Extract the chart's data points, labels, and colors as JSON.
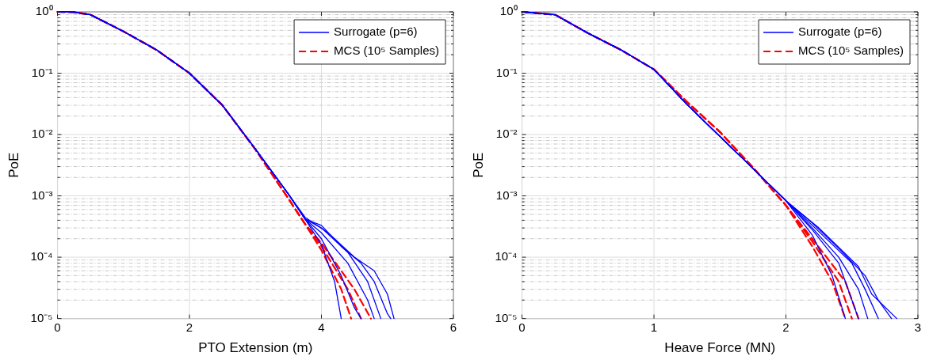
{
  "chart_data": [
    {
      "type": "line",
      "xlabel": "PTO Extension (m)",
      "ylabel": "PoE",
      "log": "y",
      "grid": true,
      "legend": "top right",
      "xlim": [
        0,
        6
      ],
      "xticks": [
        0,
        2,
        4,
        6
      ],
      "ylim": [
        1e-05,
        1
      ],
      "yticks": [
        {
          "value": 1e-05,
          "label": "10⁻⁵"
        },
        {
          "value": 2e-05,
          "label": null
        },
        {
          "value": 3e-05,
          "label": null
        },
        {
          "value": 4e-05,
          "label": null
        },
        {
          "value": 5e-05,
          "label": null
        },
        {
          "value": 6e-05,
          "label": null
        },
        {
          "value": 7e-05,
          "label": null
        },
        {
          "value": 8e-05,
          "label": null
        },
        {
          "value": 9e-05,
          "label": null
        },
        {
          "value": 0.0001,
          "label": "10⁻⁴"
        },
        {
          "value": 0.0002,
          "label": null
        },
        {
          "value": 0.0003,
          "label": null
        },
        {
          "value": 0.0004,
          "label": null
        },
        {
          "value": 0.0005,
          "label": null
        },
        {
          "value": 0.0006,
          "label": null
        },
        {
          "value": 0.0007,
          "label": null
        },
        {
          "value": 0.0008,
          "label": null
        },
        {
          "value": 0.0009,
          "label": null
        },
        {
          "value": 0.001,
          "label": "10⁻³"
        },
        {
          "value": 0.002,
          "label": null
        },
        {
          "value": 0.003,
          "label": null
        },
        {
          "value": 0.004,
          "label": null
        },
        {
          "value": 0.005,
          "label": null
        },
        {
          "value": 0.006,
          "label": null
        },
        {
          "value": 0.007,
          "label": null
        },
        {
          "value": 0.008,
          "label": null
        },
        {
          "value": 0.009,
          "label": null
        },
        {
          "value": 0.01,
          "label": "10⁻²"
        },
        {
          "value": 0.02,
          "label": null
        },
        {
          "value": 0.03,
          "label": null
        },
        {
          "value": 0.04,
          "label": null
        },
        {
          "value": 0.05,
          "label": null
        },
        {
          "value": 0.06,
          "label": null
        },
        {
          "value": 0.07,
          "label": null
        },
        {
          "value": 0.08,
          "label": null
        },
        {
          "value": 0.09,
          "label": null
        },
        {
          "value": 0.1,
          "label": "10⁻¹"
        },
        {
          "value": 0.2,
          "label": null
        },
        {
          "value": 0.3,
          "label": null
        },
        {
          "value": 0.4,
          "label": null
        },
        {
          "value": 0.5,
          "label": null
        },
        {
          "value": 0.6,
          "label": null
        },
        {
          "value": 0.7,
          "label": null
        },
        {
          "value": 0.8,
          "label": null
        },
        {
          "value": 0.9,
          "label": null
        },
        {
          "value": 1,
          "label": "10⁰"
        }
      ],
      "series": [
        {
          "name": "Surrogate (p=6)",
          "color": "#0000ff",
          "line_style": "solid",
          "x": [
            0,
            0.25,
            0.5,
            1,
            1.5,
            2,
            2.5,
            3,
            3.5,
            3.75,
            4.0,
            4.2,
            4.3
          ],
          "values": [
            1,
            0.99,
            0.9,
            0.48,
            0.24,
            0.1,
            0.03,
            0.0058,
            0.00107,
            0.00042,
            0.00016,
            4e-05,
            1e-05
          ]
        },
        {
          "color": "#0000ff",
          "line_style": "solid",
          "x": [
            0,
            0.25,
            0.5,
            1,
            1.5,
            2,
            2.5,
            3,
            3.5,
            3.75,
            4.0,
            4.3,
            4.5,
            4.6
          ],
          "values": [
            1,
            0.99,
            0.9,
            0.48,
            0.24,
            0.1,
            0.03,
            0.0058,
            0.00107,
            0.00042,
            0.0002,
            5e-05,
            1.5e-05,
            1e-05
          ]
        },
        {
          "color": "#0000ff",
          "line_style": "solid",
          "x": [
            0,
            0.25,
            0.5,
            1,
            1.5,
            2,
            2.5,
            3,
            3.5,
            3.75,
            4.0,
            4.4,
            4.7,
            4.8
          ],
          "values": [
            1,
            0.99,
            0.9,
            0.48,
            0.24,
            0.1,
            0.03,
            0.0058,
            0.00107,
            0.00042,
            0.00025,
            8e-05,
            2e-05,
            1e-05
          ]
        },
        {
          "color": "#0000ff",
          "line_style": "solid",
          "x": [
            0,
            0.25,
            0.5,
            1,
            1.5,
            2,
            2.5,
            3,
            3.5,
            3.75,
            4.0,
            4.4,
            4.7,
            4.9
          ],
          "values": [
            1,
            0.99,
            0.9,
            0.48,
            0.24,
            0.1,
            0.03,
            0.0058,
            0.00107,
            0.00042,
            0.0003,
            0.00012,
            4e-05,
            1e-05
          ]
        },
        {
          "color": "#0000ff",
          "line_style": "solid",
          "x": [
            0,
            0.25,
            0.5,
            1,
            1.5,
            2,
            2.5,
            3,
            3.5,
            3.75,
            4.0,
            4.3,
            4.6,
            4.8,
            5.0,
            5.05
          ],
          "values": [
            1,
            0.99,
            0.9,
            0.48,
            0.24,
            0.1,
            0.03,
            0.0058,
            0.00107,
            0.00042,
            0.00033,
            0.00015,
            8e-05,
            4e-05,
            1.2e-05,
            1e-05
          ]
        },
        {
          "color": "#0000ff",
          "line_style": "solid",
          "x": [
            0,
            0.25,
            0.5,
            1,
            1.5,
            2,
            2.5,
            3,
            3.5,
            3.75,
            4.1,
            4.5,
            4.8,
            5.0,
            5.1
          ],
          "values": [
            1,
            0.99,
            0.9,
            0.48,
            0.24,
            0.1,
            0.03,
            0.0058,
            0.00107,
            0.00045,
            0.00025,
            0.0001,
            6e-05,
            2.5e-05,
            1e-05
          ]
        },
        {
          "name": "MCS (10⁵ Samples)",
          "color": "#ff0000",
          "line_style": "dashed",
          "x": [
            0,
            0.25,
            0.5,
            1,
            1.5,
            2,
            2.5,
            3,
            3.5,
            3.75,
            4.0,
            4.3,
            4.45
          ],
          "values": [
            1,
            0.99,
            0.9,
            0.48,
            0.24,
            0.1,
            0.03,
            0.0057,
            0.0009,
            0.00035,
            0.00013,
            3e-05,
            1e-05
          ]
        },
        {
          "color": "#ff0000",
          "line_style": "dashed",
          "x": [
            0,
            0.25,
            0.5,
            1,
            1.5,
            2,
            2.5,
            3,
            3.5,
            3.75,
            4.0,
            4.4,
            4.6
          ],
          "values": [
            1,
            0.99,
            0.9,
            0.48,
            0.24,
            0.1,
            0.03,
            0.0057,
            0.0009,
            0.00035,
            0.00015,
            3e-05,
            1e-05
          ]
        },
        {
          "color": "#ff0000",
          "line_style": "dashed",
          "x": [
            0,
            0.25,
            0.5,
            1,
            1.5,
            2,
            2.5,
            3,
            3.5,
            3.75,
            4.0,
            4.5,
            4.75
          ],
          "values": [
            1,
            0.99,
            0.9,
            0.48,
            0.24,
            0.1,
            0.03,
            0.0057,
            0.0009,
            0.00035,
            0.00017,
            3e-05,
            1e-05
          ]
        }
      ]
    },
    {
      "type": "line",
      "xlabel": "Heave Force (MN)",
      "ylabel": "PoE",
      "log": "y",
      "grid": true,
      "legend": "top right",
      "xlim": [
        0,
        3
      ],
      "xticks": [
        0,
        1,
        2,
        3
      ],
      "ylim": [
        1e-05,
        1
      ],
      "yticks": [
        {
          "value": 1e-05,
          "label": "10⁻⁵"
        },
        {
          "value": 2e-05,
          "label": null
        },
        {
          "value": 3e-05,
          "label": null
        },
        {
          "value": 4e-05,
          "label": null
        },
        {
          "value": 5e-05,
          "label": null
        },
        {
          "value": 6e-05,
          "label": null
        },
        {
          "value": 7e-05,
          "label": null
        },
        {
          "value": 8e-05,
          "label": null
        },
        {
          "value": 9e-05,
          "label": null
        },
        {
          "value": 0.0001,
          "label": "10⁻⁴"
        },
        {
          "value": 0.0002,
          "label": null
        },
        {
          "value": 0.0003,
          "label": null
        },
        {
          "value": 0.0004,
          "label": null
        },
        {
          "value": 0.0005,
          "label": null
        },
        {
          "value": 0.0006,
          "label": null
        },
        {
          "value": 0.0007,
          "label": null
        },
        {
          "value": 0.0008,
          "label": null
        },
        {
          "value": 0.0009,
          "label": null
        },
        {
          "value": 0.001,
          "label": "10⁻³"
        },
        {
          "value": 0.002,
          "label": null
        },
        {
          "value": 0.003,
          "label": null
        },
        {
          "value": 0.004,
          "label": null
        },
        {
          "value": 0.005,
          "label": null
        },
        {
          "value": 0.006,
          "label": null
        },
        {
          "value": 0.007,
          "label": null
        },
        {
          "value": 0.008,
          "label": null
        },
        {
          "value": 0.009,
          "label": null
        },
        {
          "value": 0.01,
          "label": "10⁻²"
        },
        {
          "value": 0.02,
          "label": null
        },
        {
          "value": 0.03,
          "label": null
        },
        {
          "value": 0.04,
          "label": null
        },
        {
          "value": 0.05,
          "label": null
        },
        {
          "value": 0.06,
          "label": null
        },
        {
          "value": 0.07,
          "label": null
        },
        {
          "value": 0.08,
          "label": null
        },
        {
          "value": 0.09,
          "label": null
        },
        {
          "value": 0.1,
          "label": "10⁻¹"
        },
        {
          "value": 0.2,
          "label": null
        },
        {
          "value": 0.3,
          "label": null
        },
        {
          "value": 0.4,
          "label": null
        },
        {
          "value": 0.5,
          "label": null
        },
        {
          "value": 0.6,
          "label": null
        },
        {
          "value": 0.7,
          "label": null
        },
        {
          "value": 0.8,
          "label": null
        },
        {
          "value": 0.9,
          "label": null
        },
        {
          "value": 1,
          "label": "10⁰"
        }
      ],
      "series": [
        {
          "name": "Surrogate (p=6)",
          "color": "#0000ff",
          "line_style": "solid",
          "x": [
            0,
            0.25,
            0.5,
            0.75,
            1,
            1.25,
            1.5,
            1.75,
            2,
            2.2,
            2.35,
            2.45
          ],
          "values": [
            1,
            0.9,
            0.45,
            0.24,
            0.115,
            0.031,
            0.0093,
            0.0028,
            0.00083,
            0.00023,
            5e-05,
            1e-05
          ]
        },
        {
          "color": "#0000ff",
          "line_style": "solid",
          "x": [
            0,
            0.25,
            0.5,
            0.75,
            1,
            1.25,
            1.5,
            1.75,
            2,
            2.2,
            2.4,
            2.55
          ],
          "values": [
            1,
            0.9,
            0.45,
            0.24,
            0.115,
            0.031,
            0.0093,
            0.0028,
            0.00083,
            0.00028,
            8e-05,
            1e-05
          ]
        },
        {
          "color": "#0000ff",
          "line_style": "solid",
          "x": [
            0,
            0.25,
            0.5,
            0.75,
            1,
            1.25,
            1.5,
            1.75,
            2,
            2.2,
            2.4,
            2.55,
            2.62
          ],
          "values": [
            1,
            0.9,
            0.45,
            0.24,
            0.115,
            0.031,
            0.0093,
            0.0028,
            0.00083,
            0.0003,
            0.0001,
            3e-05,
            1e-05
          ]
        },
        {
          "color": "#0000ff",
          "line_style": "solid",
          "x": [
            0,
            0.25,
            0.5,
            0.75,
            1,
            1.25,
            1.5,
            1.75,
            2,
            2.2,
            2.5,
            2.6,
            2.7
          ],
          "values": [
            1,
            0.9,
            0.45,
            0.24,
            0.115,
            0.031,
            0.0093,
            0.0028,
            0.00083,
            0.00033,
            8e-05,
            3e-05,
            1e-05
          ]
        },
        {
          "color": "#0000ff",
          "line_style": "solid",
          "x": [
            0,
            0.25,
            0.5,
            0.75,
            1,
            1.25,
            1.5,
            1.75,
            2,
            2.2,
            2.4,
            2.6,
            2.7,
            2.8
          ],
          "values": [
            1,
            0.9,
            0.45,
            0.24,
            0.115,
            0.031,
            0.0093,
            0.0028,
            0.00083,
            0.00036,
            0.00014,
            5e-05,
            2e-05,
            1e-05
          ]
        },
        {
          "color": "#0000ff",
          "line_style": "solid",
          "x": [
            0,
            0.25,
            0.5,
            0.75,
            1,
            1.25,
            1.5,
            1.75,
            2,
            2.25,
            2.55,
            2.65,
            2.84
          ],
          "values": [
            1,
            0.9,
            0.45,
            0.24,
            0.115,
            0.031,
            0.0093,
            0.0028,
            0.00083,
            0.0003,
            7e-05,
            2.5e-05,
            1e-05
          ]
        },
        {
          "name": "MCS (10⁵ Samples)",
          "color": "#ff0000",
          "line_style": "dashed",
          "x": [
            0,
            0.25,
            0.5,
            0.75,
            1,
            1.25,
            1.5,
            1.75,
            2,
            2.2,
            2.35,
            2.45
          ],
          "values": [
            1,
            0.9,
            0.45,
            0.24,
            0.115,
            0.034,
            0.011,
            0.0029,
            0.0007,
            0.00015,
            4e-05,
            1e-05
          ]
        },
        {
          "color": "#ff0000",
          "line_style": "dashed",
          "x": [
            0,
            0.25,
            0.5,
            0.75,
            1,
            1.25,
            1.5,
            1.75,
            2,
            2.2,
            2.4,
            2.5
          ],
          "values": [
            1,
            0.9,
            0.45,
            0.24,
            0.115,
            0.034,
            0.011,
            0.0029,
            0.0007,
            0.00018,
            4e-05,
            1e-05
          ]
        },
        {
          "color": "#ff0000",
          "line_style": "dashed",
          "x": [
            0,
            0.25,
            0.5,
            0.75,
            1,
            1.25,
            1.5,
            1.75,
            2,
            2.2,
            2.45,
            2.55
          ],
          "values": [
            1,
            0.9,
            0.45,
            0.24,
            0.115,
            0.034,
            0.011,
            0.0029,
            0.0007,
            0.0002,
            4e-05,
            1e-05
          ]
        }
      ]
    }
  ]
}
